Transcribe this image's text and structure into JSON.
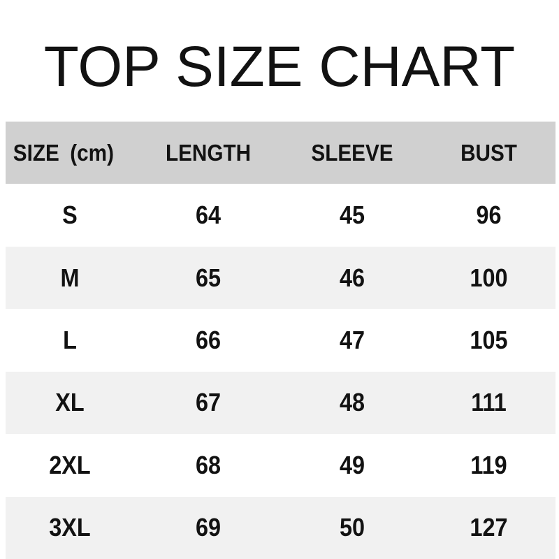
{
  "title": "TOP SIZE CHART",
  "colors": {
    "header_bg": "#d0d0d0",
    "stripe_bg": "#f1f1f1",
    "text_color": "#121212"
  },
  "table": {
    "headers": {
      "size": "SIZE (cm)",
      "length": "LENGTH",
      "sleeve": "SLEEVE",
      "bust": "BUST"
    },
    "rows": [
      {
        "size": "S",
        "length": "64",
        "sleeve": "45",
        "bust": "96"
      },
      {
        "size": "M",
        "length": "65",
        "sleeve": "46",
        "bust": "100"
      },
      {
        "size": "L",
        "length": "66",
        "sleeve": "47",
        "bust": "105"
      },
      {
        "size": "XL",
        "length": "67",
        "sleeve": "48",
        "bust": "111"
      },
      {
        "size": "2XL",
        "length": "68",
        "sleeve": "49",
        "bust": "119"
      },
      {
        "size": "3XL",
        "length": "69",
        "sleeve": "50",
        "bust": "127"
      }
    ]
  },
  "chart_data": {
    "type": "table",
    "title": "TOP SIZE CHART",
    "unit": "cm",
    "columns": [
      "SIZE (cm)",
      "LENGTH",
      "SLEEVE",
      "BUST"
    ],
    "rows": [
      [
        "S",
        64,
        45,
        96
      ],
      [
        "M",
        65,
        46,
        100
      ],
      [
        "L",
        66,
        47,
        105
      ],
      [
        "XL",
        67,
        48,
        111
      ],
      [
        "2XL",
        68,
        49,
        119
      ],
      [
        "3XL",
        69,
        50,
        127
      ]
    ]
  }
}
